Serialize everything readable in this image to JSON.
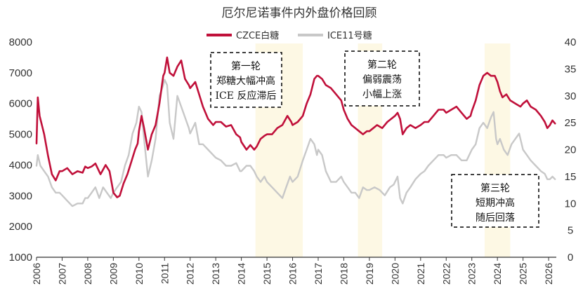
{
  "chart_data": {
    "type": "line",
    "title": "厄尔尼诺事件内外盘价格回顾",
    "x_range": [
      2006,
      2026.3
    ],
    "x_ticks": [
      "2006",
      "2007",
      "2008",
      "2009",
      "2010",
      "2011",
      "2012",
      "2013",
      "2014",
      "2015",
      "2016",
      "2017",
      "2018",
      "2019",
      "2020",
      "2021",
      "2022",
      "2023",
      "2024",
      "2025",
      "2026"
    ],
    "y_left": {
      "range": [
        1000,
        8000
      ],
      "ticks": [
        "1000",
        "2000",
        "3000",
        "4000",
        "5000",
        "6000",
        "7000",
        "8000"
      ]
    },
    "y_right": {
      "range": [
        0,
        40
      ],
      "ticks": [
        "0",
        "5",
        "10",
        "15",
        "20",
        "25",
        "30",
        "35",
        "40"
      ]
    },
    "legend_position": "top-center",
    "series": [
      {
        "name": "CZCE白糖",
        "axis": "left",
        "color": "#c0103a",
        "points": [
          [
            2006.0,
            4700
          ],
          [
            2006.05,
            6200
          ],
          [
            2006.12,
            5600
          ],
          [
            2006.3,
            5000
          ],
          [
            2006.45,
            4300
          ],
          [
            2006.6,
            3700
          ],
          [
            2006.75,
            3500
          ],
          [
            2006.9,
            3800
          ],
          [
            2007.0,
            3800
          ],
          [
            2007.2,
            3900
          ],
          [
            2007.4,
            3700
          ],
          [
            2007.6,
            3800
          ],
          [
            2007.8,
            3750
          ],
          [
            2007.9,
            3950
          ],
          [
            2008.0,
            3900
          ],
          [
            2008.15,
            3950
          ],
          [
            2008.3,
            4050
          ],
          [
            2008.5,
            3700
          ],
          [
            2008.7,
            4000
          ],
          [
            2008.85,
            3800
          ],
          [
            2008.95,
            3350
          ],
          [
            2009.0,
            3100
          ],
          [
            2009.15,
            2950
          ],
          [
            2009.25,
            3000
          ],
          [
            2009.4,
            3400
          ],
          [
            2009.55,
            3700
          ],
          [
            2009.7,
            4100
          ],
          [
            2009.85,
            4500
          ],
          [
            2009.95,
            4700
          ],
          [
            2010.0,
            5100
          ],
          [
            2010.1,
            5600
          ],
          [
            2010.2,
            5200
          ],
          [
            2010.35,
            4500
          ],
          [
            2010.5,
            5000
          ],
          [
            2010.65,
            5300
          ],
          [
            2010.8,
            6000
          ],
          [
            2010.95,
            6900
          ],
          [
            2011.0,
            7000
          ],
          [
            2011.1,
            7500
          ],
          [
            2011.2,
            7000
          ],
          [
            2011.35,
            6900
          ],
          [
            2011.5,
            7200
          ],
          [
            2011.65,
            7400
          ],
          [
            2011.8,
            6800
          ],
          [
            2011.95,
            6600
          ],
          [
            2012.0,
            6500
          ],
          [
            2012.2,
            6700
          ],
          [
            2012.35,
            6300
          ],
          [
            2012.5,
            5900
          ],
          [
            2012.7,
            5500
          ],
          [
            2012.9,
            5300
          ],
          [
            2013.0,
            5400
          ],
          [
            2013.2,
            5400
          ],
          [
            2013.4,
            5250
          ],
          [
            2013.6,
            5300
          ],
          [
            2013.8,
            5000
          ],
          [
            2013.95,
            4900
          ],
          [
            2014.0,
            4750
          ],
          [
            2014.2,
            4500
          ],
          [
            2014.35,
            4650
          ],
          [
            2014.5,
            4500
          ],
          [
            2014.6,
            4600
          ],
          [
            2014.75,
            4850
          ],
          [
            2014.9,
            4950
          ],
          [
            2015.0,
            5000
          ],
          [
            2015.2,
            5000
          ],
          [
            2015.4,
            5200
          ],
          [
            2015.6,
            5300
          ],
          [
            2015.8,
            5600
          ],
          [
            2015.95,
            5400
          ],
          [
            2016.0,
            5300
          ],
          [
            2016.2,
            5400
          ],
          [
            2016.4,
            5600
          ],
          [
            2016.55,
            6000
          ],
          [
            2016.7,
            6300
          ],
          [
            2016.85,
            6800
          ],
          [
            2016.95,
            6900
          ],
          [
            2017.0,
            6900
          ],
          [
            2017.15,
            6800
          ],
          [
            2017.3,
            6600
          ],
          [
            2017.5,
            6500
          ],
          [
            2017.7,
            6300
          ],
          [
            2017.9,
            6100
          ],
          [
            2018.0,
            5800
          ],
          [
            2018.15,
            5500
          ],
          [
            2018.3,
            5300
          ],
          [
            2018.45,
            5200
          ],
          [
            2018.6,
            5100
          ],
          [
            2018.75,
            5000
          ],
          [
            2018.9,
            5100
          ],
          [
            2019.0,
            5100
          ],
          [
            2019.15,
            5200
          ],
          [
            2019.3,
            5300
          ],
          [
            2019.5,
            5200
          ],
          [
            2019.7,
            5400
          ],
          [
            2019.85,
            5500
          ],
          [
            2020.0,
            5600
          ],
          [
            2020.1,
            5700
          ],
          [
            2020.2,
            5500
          ],
          [
            2020.3,
            5000
          ],
          [
            2020.45,
            5200
          ],
          [
            2020.6,
            5300
          ],
          [
            2020.8,
            5200
          ],
          [
            2021.0,
            5300
          ],
          [
            2021.15,
            5400
          ],
          [
            2021.3,
            5400
          ],
          [
            2021.5,
            5600
          ],
          [
            2021.7,
            5800
          ],
          [
            2021.9,
            5800
          ],
          [
            2022.0,
            5700
          ],
          [
            2022.2,
            5800
          ],
          [
            2022.4,
            5900
          ],
          [
            2022.6,
            5700
          ],
          [
            2022.8,
            5500
          ],
          [
            2022.95,
            5600
          ],
          [
            2023.0,
            5750
          ],
          [
            2023.15,
            6100
          ],
          [
            2023.3,
            6600
          ],
          [
            2023.45,
            6900
          ],
          [
            2023.6,
            7000
          ],
          [
            2023.75,
            6900
          ],
          [
            2023.9,
            6900
          ],
          [
            2024.0,
            6700
          ],
          [
            2024.1,
            6400
          ],
          [
            2024.2,
            6200
          ],
          [
            2024.35,
            6300
          ],
          [
            2024.5,
            6100
          ],
          [
            2024.7,
            6000
          ],
          [
            2024.9,
            5900
          ],
          [
            2025.0,
            6000
          ],
          [
            2025.15,
            6100
          ],
          [
            2025.3,
            5900
          ],
          [
            2025.5,
            5800
          ],
          [
            2025.7,
            5600
          ],
          [
            2025.85,
            5400
          ],
          [
            2025.95,
            5200
          ],
          [
            2026.05,
            5300
          ],
          [
            2026.15,
            5450
          ],
          [
            2026.25,
            5350
          ]
        ]
      },
      {
        "name": "ICE11号糖",
        "axis": "right",
        "color": "#c8c8c8",
        "points": [
          [
            2006.0,
            17
          ],
          [
            2006.05,
            19
          ],
          [
            2006.15,
            17
          ],
          [
            2006.3,
            16
          ],
          [
            2006.45,
            15
          ],
          [
            2006.6,
            13
          ],
          [
            2006.75,
            12
          ],
          [
            2006.9,
            12
          ],
          [
            2007.0,
            11.5
          ],
          [
            2007.2,
            10.5
          ],
          [
            2007.4,
            9.5
          ],
          [
            2007.6,
            10
          ],
          [
            2007.8,
            10
          ],
          [
            2007.9,
            11
          ],
          [
            2008.0,
            11
          ],
          [
            2008.15,
            12
          ],
          [
            2008.3,
            13
          ],
          [
            2008.45,
            11
          ],
          [
            2008.6,
            13
          ],
          [
            2008.75,
            12
          ],
          [
            2008.9,
            11
          ],
          [
            2009.0,
            12
          ],
          [
            2009.15,
            13
          ],
          [
            2009.3,
            14
          ],
          [
            2009.45,
            17
          ],
          [
            2009.6,
            19
          ],
          [
            2009.75,
            23
          ],
          [
            2009.9,
            25
          ],
          [
            2010.0,
            28
          ],
          [
            2010.1,
            27
          ],
          [
            2010.2,
            22
          ],
          [
            2010.35,
            15
          ],
          [
            2010.5,
            18
          ],
          [
            2010.65,
            22
          ],
          [
            2010.8,
            30
          ],
          [
            2010.95,
            32
          ],
          [
            2011.0,
            33
          ],
          [
            2011.1,
            32
          ],
          [
            2011.2,
            25
          ],
          [
            2011.35,
            22
          ],
          [
            2011.5,
            30
          ],
          [
            2011.65,
            28
          ],
          [
            2011.8,
            26
          ],
          [
            2011.95,
            24
          ],
          [
            2012.0,
            23
          ],
          [
            2012.2,
            25
          ],
          [
            2012.35,
            21
          ],
          [
            2012.5,
            21
          ],
          [
            2012.7,
            20
          ],
          [
            2012.9,
            19
          ],
          [
            2013.0,
            18.5
          ],
          [
            2013.2,
            18
          ],
          [
            2013.4,
            17
          ],
          [
            2013.6,
            17
          ],
          [
            2013.8,
            17.5
          ],
          [
            2013.95,
            16
          ],
          [
            2014.0,
            16
          ],
          [
            2014.2,
            17
          ],
          [
            2014.35,
            17
          ],
          [
            2014.5,
            16
          ],
          [
            2014.6,
            15
          ],
          [
            2014.75,
            14
          ],
          [
            2014.9,
            15
          ],
          [
            2015.0,
            14
          ],
          [
            2015.2,
            13
          ],
          [
            2015.4,
            12
          ],
          [
            2015.6,
            11
          ],
          [
            2015.75,
            13
          ],
          [
            2015.9,
            15
          ],
          [
            2016.0,
            14
          ],
          [
            2016.2,
            15
          ],
          [
            2016.4,
            18
          ],
          [
            2016.55,
            20
          ],
          [
            2016.7,
            22
          ],
          [
            2016.85,
            21
          ],
          [
            2016.95,
            19
          ],
          [
            2017.0,
            20
          ],
          [
            2017.15,
            19
          ],
          [
            2017.3,
            16
          ],
          [
            2017.5,
            14
          ],
          [
            2017.7,
            14
          ],
          [
            2017.9,
            15
          ],
          [
            2018.0,
            14
          ],
          [
            2018.15,
            13
          ],
          [
            2018.3,
            12
          ],
          [
            2018.45,
            12
          ],
          [
            2018.6,
            11
          ],
          [
            2018.75,
            13
          ],
          [
            2018.9,
            12.5
          ],
          [
            2019.0,
            12.5
          ],
          [
            2019.2,
            13
          ],
          [
            2019.4,
            12.5
          ],
          [
            2019.6,
            11.5
          ],
          [
            2019.8,
            13
          ],
          [
            2019.95,
            13.5
          ],
          [
            2020.0,
            14
          ],
          [
            2020.1,
            15
          ],
          [
            2020.2,
            11
          ],
          [
            2020.3,
            10
          ],
          [
            2020.45,
            12
          ],
          [
            2020.6,
            13
          ],
          [
            2020.8,
            14.5
          ],
          [
            2021.0,
            15.5
          ],
          [
            2021.15,
            16
          ],
          [
            2021.3,
            17
          ],
          [
            2021.5,
            18
          ],
          [
            2021.7,
            19
          ],
          [
            2021.9,
            19
          ],
          [
            2022.0,
            18.5
          ],
          [
            2022.2,
            19
          ],
          [
            2022.4,
            19
          ],
          [
            2022.6,
            18
          ],
          [
            2022.8,
            18
          ],
          [
            2022.95,
            19.5
          ],
          [
            2023.0,
            20
          ],
          [
            2023.15,
            21
          ],
          [
            2023.3,
            24
          ],
          [
            2023.45,
            25
          ],
          [
            2023.6,
            24
          ],
          [
            2023.75,
            26
          ],
          [
            2023.85,
            27
          ],
          [
            2023.95,
            22
          ],
          [
            2024.0,
            21
          ],
          [
            2024.1,
            22
          ],
          [
            2024.25,
            20
          ],
          [
            2024.4,
            19
          ],
          [
            2024.55,
            21
          ],
          [
            2024.7,
            22
          ],
          [
            2024.85,
            23
          ],
          [
            2025.0,
            20
          ],
          [
            2025.15,
            19
          ],
          [
            2025.3,
            18
          ],
          [
            2025.5,
            17
          ],
          [
            2025.7,
            16
          ],
          [
            2025.85,
            15.5
          ],
          [
            2025.95,
            14.5
          ],
          [
            2026.05,
            14.5
          ],
          [
            2026.15,
            15
          ],
          [
            2026.25,
            14.5
          ]
        ]
      }
    ],
    "highlight_periods": [
      {
        "start": 2014.55,
        "end": 2016.4
      },
      {
        "start": 2018.55,
        "end": 2019.5
      },
      {
        "start": 2023.5,
        "end": 2024.5
      }
    ],
    "annotations": [
      {
        "lines": [
          "第一轮",
          "郑糖大幅冲高",
          "ICE 反应滞后"
        ]
      },
      {
        "lines": [
          "第二轮",
          "偏弱震荡",
          "小幅上涨"
        ]
      },
      {
        "lines": [
          "第三轮",
          "短期冲高",
          "随后回落"
        ]
      }
    ],
    "colors": {
      "highlight_fill": "#fdf8e4",
      "annotation_border": "#000000"
    }
  }
}
